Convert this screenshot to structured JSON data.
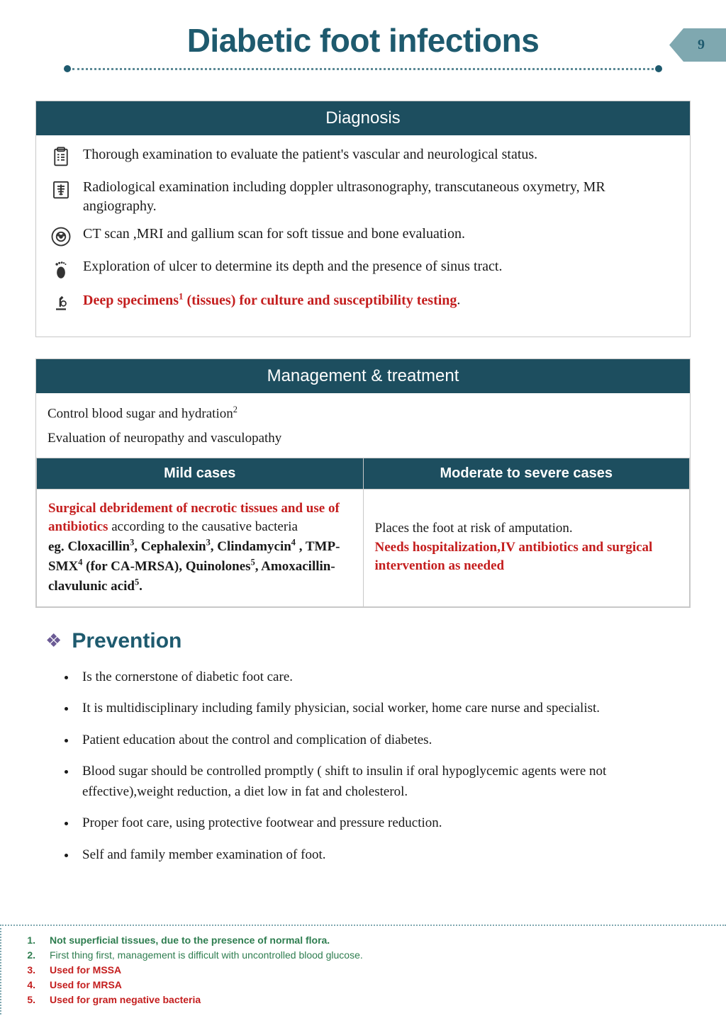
{
  "colors": {
    "title": "#1e5a6e",
    "panel_header_bg": "#1d4e5f",
    "panel_header_text": "#ffffff",
    "tab_bg": "#7fa8b0",
    "border": "#c8c8c8",
    "red": "#c41e1e",
    "diamond": "#6b5b95",
    "dotted": "#5c8a96",
    "fn_green": "#2e7d4f"
  },
  "header": {
    "title": "Diabetic foot infections",
    "page_number": "9"
  },
  "diagnosis": {
    "heading": "Diagnosis",
    "items": [
      {
        "icon": "clipboard",
        "text": "Thorough examination to evaluate the patient's vascular and neurological status."
      },
      {
        "icon": "xray",
        "text": "Radiological examination including doppler ultrasonography, transcutaneous oxymetry, MR angiography."
      },
      {
        "icon": "scanner",
        "text": "CT scan ,MRI and gallium scan for soft tissue and bone evaluation."
      },
      {
        "icon": "foot",
        "text": "Exploration of ulcer to determine its depth and the presence of sinus tract."
      },
      {
        "icon": "microscope",
        "text_red_pre": "Deep specimens",
        "sup": "1",
        "text_red_post": " (tissues) for culture and susceptibility testing",
        "period": "."
      }
    ]
  },
  "management": {
    "heading": "Management & treatment",
    "intro_line1_pre": "Control blood sugar and hydration",
    "intro_line1_sup": "2",
    "intro_line2": "Evaluation of neuropathy and vasculopathy",
    "col1_header": "Mild cases",
    "col2_header": "Moderate to severe cases",
    "mild": {
      "red_part": "Surgical debridement of necrotic tissues and use of antibiotics",
      "black_part": " according to the causative bacteria",
      "eg_label": "eg. ",
      "drugs_html": "Cloxacillin<sup>3</sup>, Cephalexin<sup>3</sup>, Clindamycin<sup>4</sup> , TMP-SMX<sup>4</sup> (for CA-MRSA), Quinolones<sup>5</sup>, Amoxacillin-clavulunic acid<sup>5</sup>."
    },
    "severe": {
      "line1": "Places the foot at risk of amputation.",
      "line2_red": "Needs hospitalization,IV antibiotics and surgical intervention as needed"
    }
  },
  "prevention": {
    "heading": "Prevention",
    "items": [
      "Is the cornerstone of diabetic foot care.",
      "It is multidisciplinary including family physician, social worker, home care nurse and specialist.",
      "Patient education about the control and complication of diabetes.",
      "Blood sugar should be controlled promptly ( shift to insulin if oral hypoglycemic agents were not effective),weight reduction, a diet low in fat and cholesterol.",
      "Proper foot care, using protective footwear and pressure reduction.",
      "Self and family member examination of foot."
    ]
  },
  "footnotes": [
    {
      "n": "1.",
      "style": "green-bold",
      "text": "Not superficial tissues, due to the presence of normal flora."
    },
    {
      "n": "2.",
      "style": "green",
      "text": "First thing first, management is difficult with uncontrolled blood glucose."
    },
    {
      "n": "3.",
      "style": "red",
      "text": "Used for MSSA"
    },
    {
      "n": "4.",
      "style": "red",
      "text": "Used for MRSA"
    },
    {
      "n": "5.",
      "style": "red",
      "text": "Used for gram negative bacteria"
    }
  ]
}
